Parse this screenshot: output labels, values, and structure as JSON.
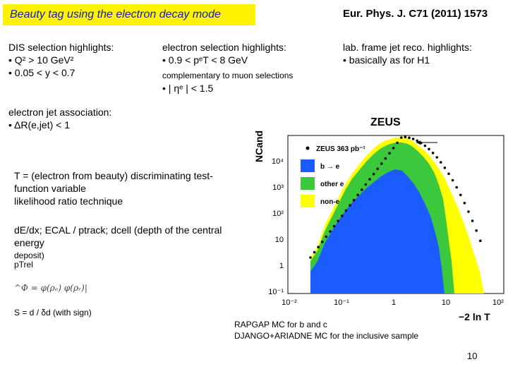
{
  "title": "Beauty tag using the electron decay mode",
  "reference": "Eur. Phys. J. C71 (2011) 1573",
  "dis": {
    "heading": "DIS selection highlights:",
    "item1": "• Q² > 10 GeV²",
    "item2": "• 0.05 < y < 0.7"
  },
  "electron_sel": {
    "heading": "electron selection highlights:",
    "item1": "• 0.9 < pᵉT < 8 GeV",
    "note": "complementary to muon selections",
    "item2": "• | ηᵉ | < 1.5"
  },
  "lab_frame": {
    "heading": "lab. frame jet reco. highlights:",
    "item1": "• basically as for H1"
  },
  "jet_assoc": {
    "heading": "electron jet association:",
    "item1": "• ΔR(e,jet) < 1"
  },
  "discriminant": {
    "line1": "T = (electron from beauty) discriminating test-",
    "line2": "function variable",
    "line3": "likelihood ratio technique"
  },
  "variables": {
    "line1": "dE/dx; ECAL / ptrack; dcell (depth of the central energy",
    "line2": "deposit)",
    "line3": "pTrel",
    "line4": "S = d / δd (with sign)"
  },
  "plot": {
    "experiment": "ZEUS",
    "ylabel": "NCand",
    "xlabel": "−2 ln T",
    "legend_data": "ZEUS 363 pb⁻¹",
    "legend_b": "b → e",
    "legend_other": "other e",
    "legend_non": "non-e",
    "y_ticks": [
      "10⁴",
      "10³",
      "10²",
      "10",
      "1",
      "10⁻¹"
    ],
    "x_ticks": [
      "10⁻²",
      "10⁻¹",
      "1",
      "10",
      "10²"
    ],
    "colors": {
      "b": "#1a5cff",
      "other": "#3cc83c",
      "non": "#ffff00",
      "data": "#000000"
    }
  },
  "mc_note": {
    "line1": "RAPGAP MC for b and c",
    "line2": "DJANGO+ARIADNE MC for the inclusive sample"
  },
  "page_number": "10"
}
